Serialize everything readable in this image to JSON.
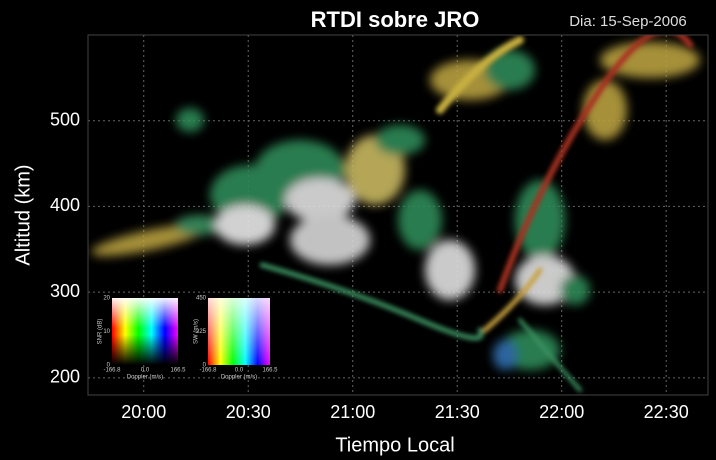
{
  "chart_data": {
    "type": "image",
    "title": "RTDI sobre JRO",
    "subtitle": "Dia: 15-Sep-2006",
    "xlabel": "Tiempo Local",
    "ylabel": "Altitud (km)",
    "xlim": [
      1184,
      1362
    ],
    "xticks": [
      {
        "value": 1200,
        "label": "20:00"
      },
      {
        "value": 1230,
        "label": "20:30"
      },
      {
        "value": 1260,
        "label": "21:00"
      },
      {
        "value": 1290,
        "label": "21:30"
      },
      {
        "value": 1320,
        "label": "22:00"
      },
      {
        "value": 1350,
        "label": "22:30"
      }
    ],
    "ylim": [
      180,
      600
    ],
    "yticks": [
      200,
      300,
      400,
      500
    ],
    "grid": true,
    "color_keys": [
      {
        "ylabel": "SNR (dB)",
        "ylim": [
          0,
          20
        ],
        "yticks": [
          0,
          10,
          20
        ],
        "xlabel": "Doppler (m/s)",
        "xlim": [
          -166.8,
          166.5
        ],
        "xticks": [
          -166.8,
          {
            "value": 0,
            "label": "0.0"
          },
          166.5
        ]
      },
      {
        "ylabel": "SW (m/s)",
        "ylim": [
          0,
          450
        ],
        "yticks": [
          0,
          225,
          450
        ],
        "xlabel": "Doppler (m/s)",
        "xlim": [
          -166.8,
          166.5
        ],
        "xticks": [
          -166.8,
          {
            "value": 0,
            "label": "0.0"
          },
          166.5
        ]
      }
    ]
  }
}
